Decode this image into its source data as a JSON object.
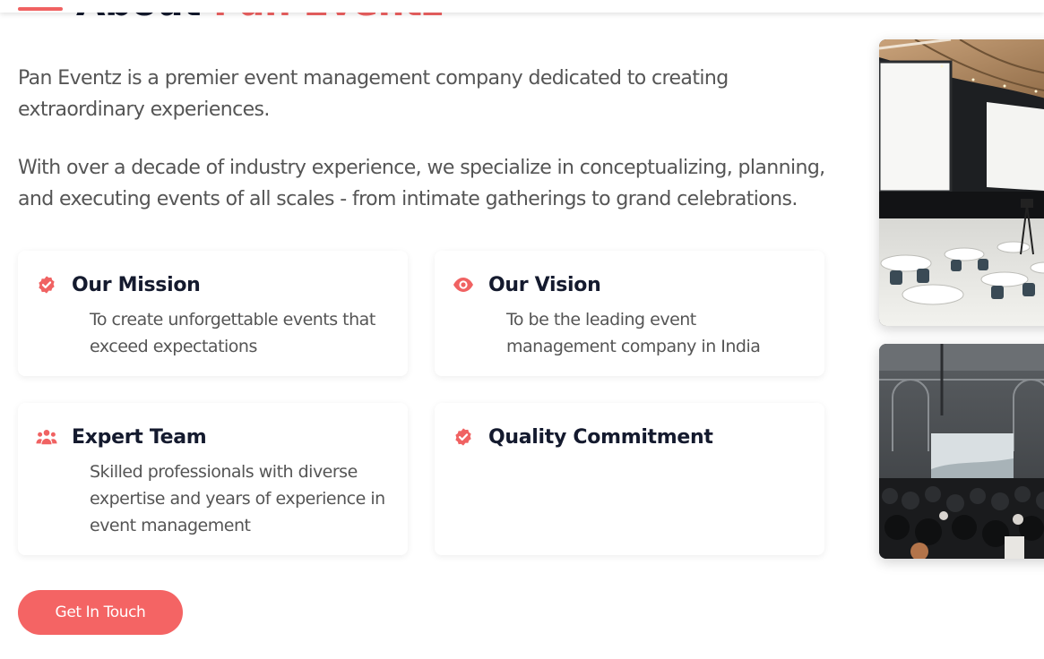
{
  "header": {
    "title_prefix": "About",
    "title_highlight": "Pan Eventz"
  },
  "about": {
    "paragraph_1": "Pan Eventz is a premier event management company dedicated to creating extraordinary experiences.",
    "paragraph_2": "With over a decade of industry experience, we specialize in conceptualizing, planning, and executing events of all scales - from intimate gatherings to grand celebrations."
  },
  "features": {
    "mission": {
      "icon": "check-badge-icon",
      "title": "Our Mission",
      "text": "To create unforgettable events that exceed expectations"
    },
    "vision": {
      "icon": "eye-icon",
      "title": "Our Vision",
      "text": "To be the leading event management company in India"
    },
    "team": {
      "icon": "users-icon",
      "title": "Expert Team",
      "text": "Skilled professionals with diverse expertise and years of experience in event management"
    },
    "quality": {
      "icon": "check-badge-icon",
      "title": "Quality Commitment",
      "text": ""
    }
  },
  "cta": {
    "label": "Get In Touch"
  },
  "colors": {
    "accent": "#f06262",
    "heading": "#141a2e",
    "body_text": "#555555",
    "button": "#f46464"
  }
}
